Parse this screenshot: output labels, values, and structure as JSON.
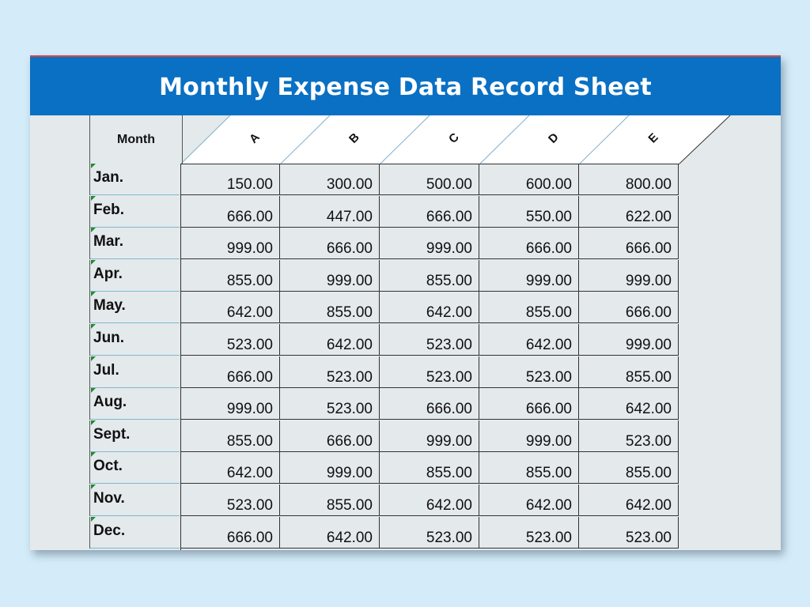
{
  "title": "Monthly Expense Data Record Sheet",
  "month_header": "Month",
  "columns": [
    "A",
    "B",
    "C",
    "D",
    "E"
  ],
  "rows": [
    {
      "month": "Jan.",
      "values": [
        "150.00",
        "300.00",
        "500.00",
        "600.00",
        "800.00"
      ]
    },
    {
      "month": "Feb.",
      "values": [
        "666.00",
        "447.00",
        "666.00",
        "550.00",
        "622.00"
      ]
    },
    {
      "month": "Mar.",
      "values": [
        "999.00",
        "666.00",
        "999.00",
        "666.00",
        "666.00"
      ]
    },
    {
      "month": "Apr.",
      "values": [
        "855.00",
        "999.00",
        "855.00",
        "999.00",
        "999.00"
      ]
    },
    {
      "month": "May.",
      "values": [
        "642.00",
        "855.00",
        "642.00",
        "855.00",
        "666.00"
      ]
    },
    {
      "month": "Jun.",
      "values": [
        "523.00",
        "642.00",
        "523.00",
        "642.00",
        "999.00"
      ]
    },
    {
      "month": "Jul.",
      "values": [
        "666.00",
        "523.00",
        "523.00",
        "523.00",
        "855.00"
      ]
    },
    {
      "month": "Aug.",
      "values": [
        "999.00",
        "523.00",
        "666.00",
        "666.00",
        "642.00"
      ]
    },
    {
      "month": "Sept.",
      "values": [
        "855.00",
        "666.00",
        "999.00",
        "999.00",
        "523.00"
      ]
    },
    {
      "month": "Oct.",
      "values": [
        "642.00",
        "999.00",
        "855.00",
        "855.00",
        "855.00"
      ]
    },
    {
      "month": "Nov.",
      "values": [
        "523.00",
        "855.00",
        "642.00",
        "642.00",
        "642.00"
      ]
    },
    {
      "month": "Dec.",
      "values": [
        "666.00",
        "642.00",
        "523.00",
        "523.00",
        "523.00"
      ]
    }
  ],
  "colors": {
    "background": "#d4ecfa",
    "banner": "#0a70c4",
    "sheet": "#e4e9ec",
    "accent_line": "#e04040",
    "row_marker": "#1e8b2e"
  }
}
